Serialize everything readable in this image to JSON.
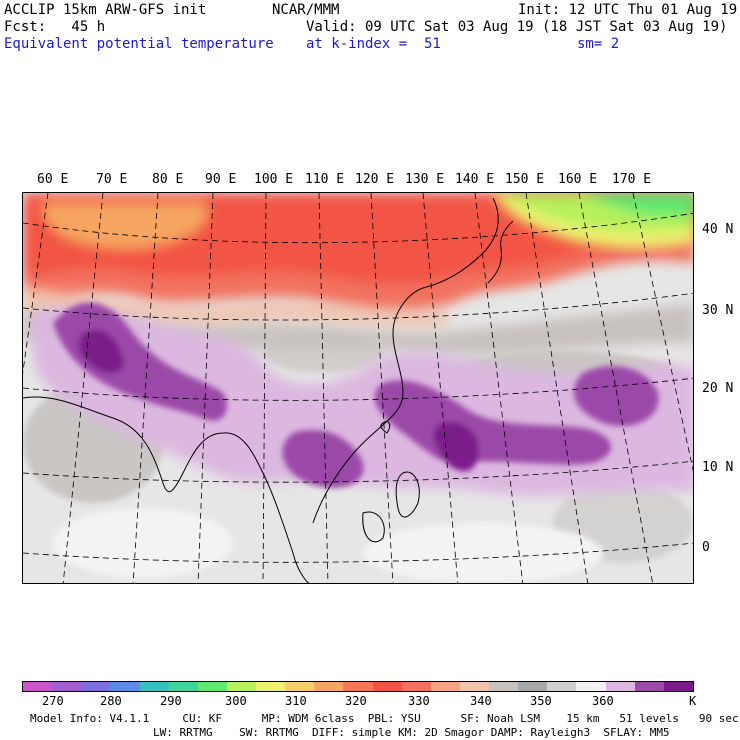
{
  "header": {
    "model": "ACCLIP 15km ARW-GFS init",
    "center": "NCAR/MMM",
    "init": "Init: 12 UTC Thu 01 Aug 19",
    "fcst": "Fcst:   45 h",
    "valid": "Valid: 09 UTC Sat 03 Aug 19 (18 JST Sat 03 Aug 19)",
    "field": "Equivalent potential temperature",
    "level": "at k-index =  51",
    "smoothing": "sm= 2"
  },
  "map": {
    "lon_labels": [
      "60 E",
      "70 E",
      "80 E",
      "90 E",
      "100 E",
      "110 E",
      "120 E",
      "130 E",
      "140 E",
      "150 E",
      "160 E",
      "170 E"
    ],
    "lat_labels": [
      "40 N",
      "30 N",
      "20 N",
      "10 N",
      "0"
    ]
  },
  "colorbar": {
    "colors": [
      "#cc55cc",
      "#a35ecf",
      "#7e6ee0",
      "#5c8be8",
      "#36c0c0",
      "#3ed398",
      "#5ee870",
      "#b6f05c",
      "#eef070",
      "#f5cf6a",
      "#f6a660",
      "#f7765a",
      "#f25545",
      "#f2725f",
      "#f5a483",
      "#f0c3ad",
      "#c8c2bf",
      "#a8a8a8",
      "#cfcfcf",
      "#f2f2f2",
      "#dcb8e0",
      "#9b4aa8",
      "#7a1a8a"
    ],
    "tick_labels": [
      "270",
      "280",
      "290",
      "300",
      "310",
      "320",
      "330",
      "340",
      "350",
      "360",
      "K"
    ]
  },
  "footer": {
    "line1": "Model Info: V4.1.1     CU: KF      MP: WDM 6class  PBL: YSU      SF: Noah LSM    15 km   51 levels   90 sec",
    "line2": "LW: RRTMG    SW: RRTMG  DIFF: simple KM: 2D Smagor DAMP: Rayleigh3  SFLAY: MM5"
  }
}
